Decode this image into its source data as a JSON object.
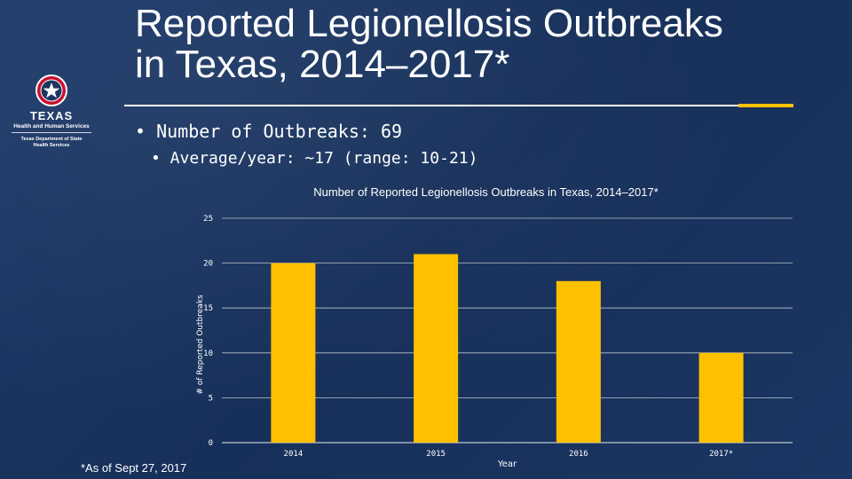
{
  "slide": {
    "title_line1": "Reported Legionellosis Outbreaks",
    "title_line2": "in Texas, 2014–2017*",
    "bullets": [
      "• Number of Outbreaks: 69",
      "• Average/year: ~17 (range: 10-21)"
    ],
    "footnote": "*As of Sept 27, 2017"
  },
  "logo": {
    "wordmark": "TEXAS",
    "org_line": "Health and Human Services",
    "dept_line1": "Texas Department of State",
    "dept_line2": "Health Services"
  },
  "colors": {
    "background": "#1a3560",
    "bar": "#ffc000",
    "text": "#ffffff",
    "accent": "#ffc000"
  },
  "chart_data": {
    "type": "bar",
    "title": "Number of Reported Legionellosis Outbreaks in Texas, 2014–2017*",
    "categories": [
      "2014",
      "2015",
      "2016",
      "2017*"
    ],
    "values": [
      20,
      21,
      18,
      10
    ],
    "xlabel": "Year",
    "ylabel": "# of Reported Outbreaks",
    "ylim": [
      0,
      25
    ],
    "yticks": [
      0,
      5,
      10,
      15,
      20,
      25
    ],
    "grid": true
  }
}
